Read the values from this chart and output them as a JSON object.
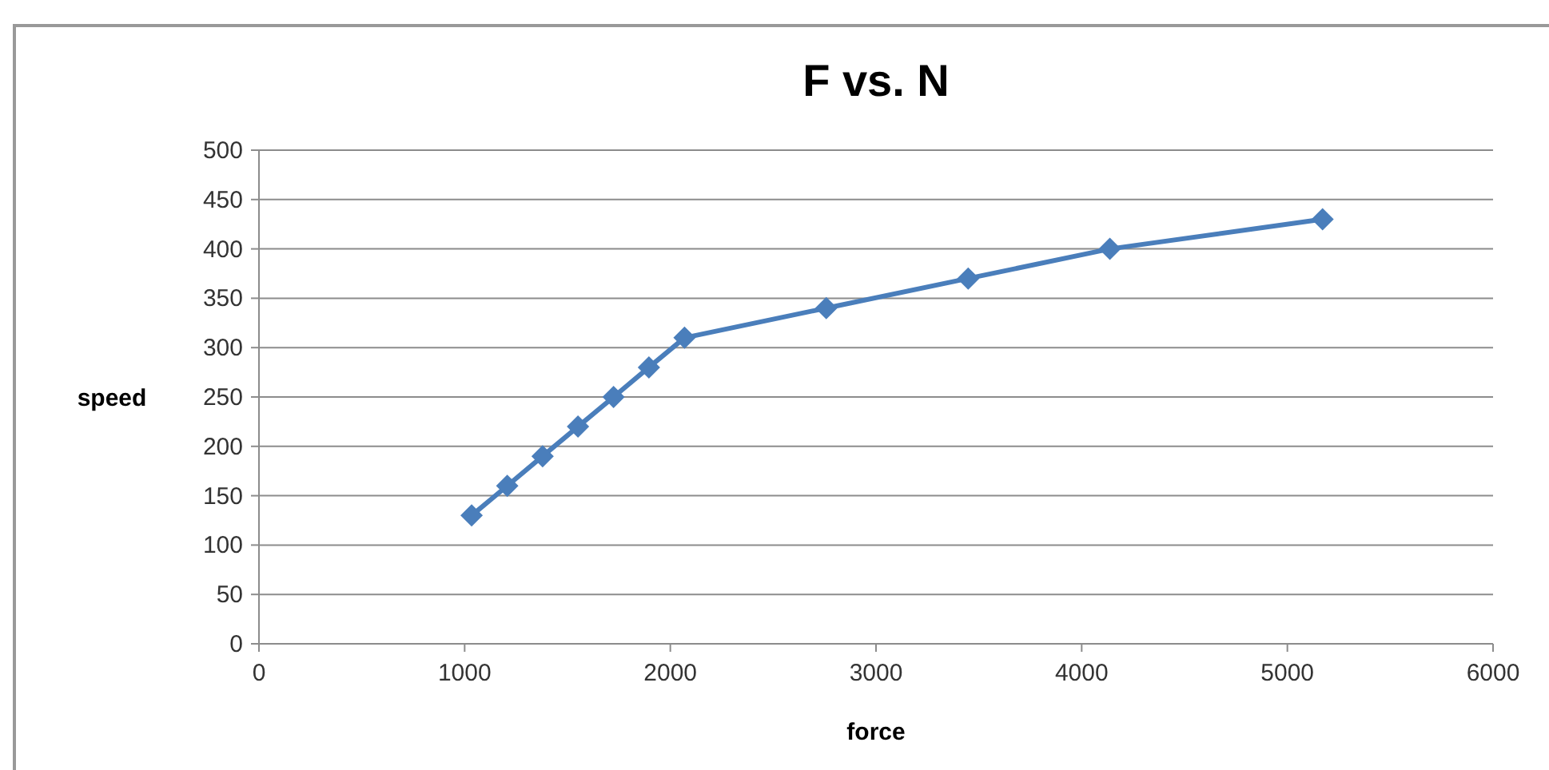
{
  "chart_data": {
    "type": "line",
    "title": "F vs. N",
    "xlabel": "force",
    "ylabel": "speed",
    "x": [
      1034,
      1207,
      1379,
      1551,
      1724,
      1896,
      2069,
      2758,
      3448,
      4137,
      5171
    ],
    "series": [
      {
        "color": "#4a7ebb",
        "values": [
          130,
          160,
          190,
          220,
          250,
          280,
          310,
          340,
          370,
          400,
          430
        ]
      }
    ],
    "xlim": [
      0,
      6000
    ],
    "xticks": [
      0,
      1000,
      2000,
      3000,
      4000,
      5000,
      6000
    ],
    "ylim": [
      0,
      500
    ],
    "yticks": [
      0,
      50,
      100,
      150,
      200,
      250,
      300,
      350,
      400,
      450,
      500
    ],
    "grid": "y",
    "marker": "diamond",
    "line_style": "solid"
  }
}
